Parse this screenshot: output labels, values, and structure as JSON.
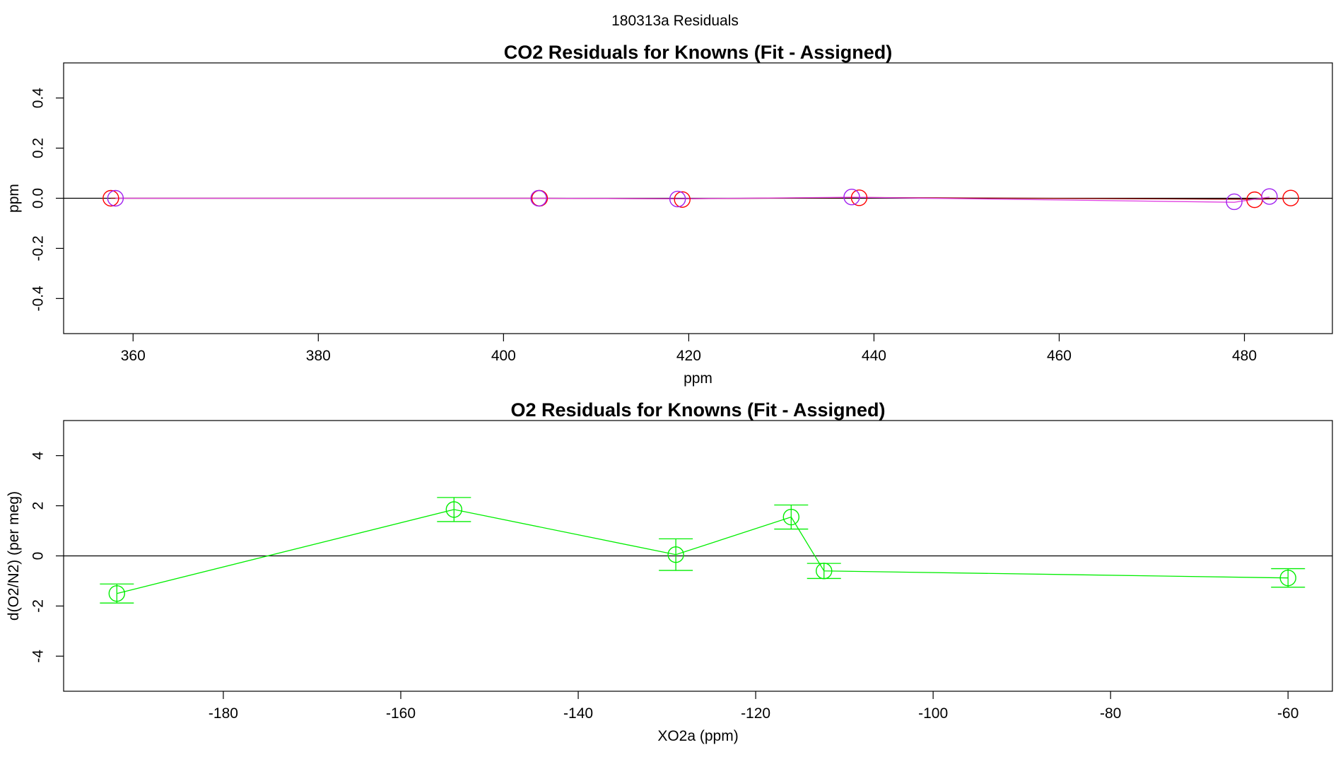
{
  "figure": {
    "suptitle": "180313a  Residuals"
  },
  "colors": {
    "red": "#ff0000",
    "purple": "#a020f0",
    "darkred": "#8b0000",
    "magenta": "#e040e0",
    "green": "#00ee00",
    "axis": "#000000"
  },
  "chart_data": [
    {
      "type": "line",
      "title": "CO2 Residuals for Knowns (Fit - Assigned)",
      "xlabel": "ppm",
      "ylabel": "ppm",
      "xlim": [
        352.5,
        489.5
      ],
      "ylim": [
        -0.54,
        0.54
      ],
      "xticks": [
        360,
        380,
        400,
        420,
        440,
        460,
        480
      ],
      "xtick_labels": [
        "360",
        "380",
        "400",
        "420",
        "440",
        "460",
        "480"
      ],
      "yticks": [
        -0.4,
        -0.2,
        0.0,
        0.2,
        0.4
      ],
      "ytick_labels": [
        "-0.4",
        "-0.2",
        "0.0",
        "0.2",
        "0.4"
      ],
      "hline": 0,
      "series": [
        {
          "color": "#ff0000",
          "points": [
            [
              357.6,
              0.0
            ],
            [
              403.9,
              0.0
            ],
            [
              419.3,
              -0.005
            ],
            [
              438.4,
              0.002
            ],
            [
              481.1,
              -0.006
            ],
            [
              485.0,
              0.001
            ]
          ]
        },
        {
          "color": "#a020f0",
          "points": [
            [
              358.1,
              0.0
            ],
            [
              403.8,
              0.0
            ],
            [
              418.8,
              -0.003
            ],
            [
              437.6,
              0.005
            ],
            [
              478.9,
              -0.014
            ],
            [
              482.7,
              0.007
            ]
          ]
        }
      ],
      "lines": [
        {
          "color": "#8b0000",
          "points": [
            [
              357.6,
              0.0
            ],
            [
              403.9,
              0.0
            ],
            [
              419.3,
              -0.002
            ],
            [
              438.4,
              0.003
            ],
            [
              481.1,
              -0.004
            ],
            [
              485.0,
              0.0
            ]
          ]
        },
        {
          "color": "#e040e0",
          "points": [
            [
              358.1,
              0.0
            ],
            [
              403.8,
              0.0
            ],
            [
              418.8,
              -0.002
            ],
            [
              437.6,
              0.004
            ],
            [
              478.9,
              -0.016
            ],
            [
              482.7,
              0.005
            ]
          ]
        }
      ]
    },
    {
      "type": "line",
      "title": "O2 Residuals for Knowns (Fit - Assigned)",
      "xlabel": "XO2a (ppm)",
      "ylabel": "d(O2/N2) (per meg)",
      "xlim": [
        -198,
        -55
      ],
      "ylim": [
        -5.4,
        5.4
      ],
      "xticks": [
        -180,
        -160,
        -140,
        -120,
        -100,
        -80,
        -60
      ],
      "xtick_labels": [
        "-180",
        "-160",
        "-140",
        "-120",
        "-100",
        "-80",
        "-60"
      ],
      "yticks": [
        -4,
        -2,
        0,
        2,
        4
      ],
      "ytick_labels": [
        "-4",
        "-2",
        "0",
        "2",
        "4"
      ],
      "hline": 0,
      "series": [
        {
          "color": "#00ee00",
          "points": [
            [
              -192.0,
              -1.5
            ],
            [
              -154.0,
              1.85
            ],
            [
              -129.0,
              0.05
            ],
            [
              -116.0,
              1.55
            ],
            [
              -112.3,
              -0.6
            ],
            [
              -60.0,
              -0.88
            ]
          ],
          "errors": [
            0.38,
            0.48,
            0.63,
            0.48,
            0.3,
            0.37
          ]
        }
      ]
    }
  ]
}
